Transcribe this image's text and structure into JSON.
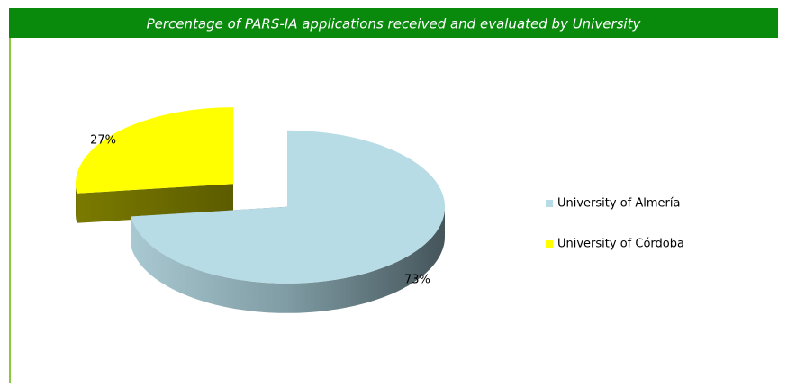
{
  "chart_data": {
    "type": "pie3d",
    "title": "Percentage of PARS-IA applications received and evaluated by University",
    "categories": [
      "University of Almería",
      "University of Córdoba"
    ],
    "values": [
      73,
      27
    ],
    "value_labels": [
      "73%",
      "27%"
    ],
    "colors": [
      "#b7dce6",
      "#ffff00"
    ],
    "legend": "right"
  }
}
